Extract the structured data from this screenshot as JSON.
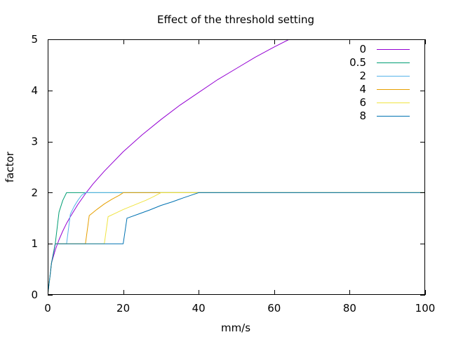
{
  "chart_data": {
    "type": "line",
    "title": "Effect of the threshold setting",
    "xlabel": "mm/s",
    "ylabel": "factor",
    "xlim": [
      0,
      100
    ],
    "ylim": [
      0,
      5
    ],
    "xticks": [
      0,
      20,
      40,
      60,
      80,
      100
    ],
    "yticks": [
      0,
      1,
      2,
      3,
      4,
      5
    ],
    "xtick_labels": [
      "0",
      "20",
      "40",
      "60",
      "80",
      "100"
    ],
    "ytick_labels": [
      "0",
      "1",
      "2",
      "3",
      "4",
      "5"
    ],
    "grid": false,
    "legend_position": "top-right",
    "series": [
      {
        "name": "0",
        "color": "#9400d3",
        "points": [
          [
            0,
            0
          ],
          [
            0.5,
            0.3
          ],
          [
            1,
            0.62
          ],
          [
            2,
            0.88
          ],
          [
            3,
            1.08
          ],
          [
            4,
            1.25
          ],
          [
            5,
            1.4
          ],
          [
            6,
            1.53
          ],
          [
            8,
            1.77
          ],
          [
            10,
            1.98
          ],
          [
            12,
            2.17
          ],
          [
            15,
            2.42
          ],
          [
            20,
            2.8
          ],
          [
            25,
            3.13
          ],
          [
            30,
            3.43
          ],
          [
            35,
            3.71
          ],
          [
            40,
            3.96
          ],
          [
            45,
            4.21
          ],
          [
            50,
            4.43
          ],
          [
            55,
            4.65
          ],
          [
            60,
            4.85
          ],
          [
            64,
            5.0
          ]
        ]
      },
      {
        "name": "0.5",
        "color": "#009e73",
        "points": [
          [
            0,
            0
          ],
          [
            0.5,
            0.3
          ],
          [
            1,
            0.62
          ],
          [
            1.5,
            0.8
          ],
          [
            2,
            1.0
          ],
          [
            3,
            1.62
          ],
          [
            4,
            1.85
          ],
          [
            5,
            2.0
          ],
          [
            100,
            2.0
          ]
        ]
      },
      {
        "name": "2",
        "color": "#56b4e9",
        "points": [
          [
            0,
            0
          ],
          [
            0.5,
            0.3
          ],
          [
            1,
            0.62
          ],
          [
            2,
            1.0
          ],
          [
            5,
            1.0
          ],
          [
            6,
            1.58
          ],
          [
            7,
            1.73
          ],
          [
            8,
            1.85
          ],
          [
            9,
            1.95
          ],
          [
            10,
            2.0
          ],
          [
            100,
            2.0
          ]
        ]
      },
      {
        "name": "4",
        "color": "#e69f00",
        "points": [
          [
            0,
            0
          ],
          [
            0.5,
            0.3
          ],
          [
            1,
            0.62
          ],
          [
            2,
            1.0
          ],
          [
            10,
            1.0
          ],
          [
            11,
            1.55
          ],
          [
            13,
            1.67
          ],
          [
            15,
            1.78
          ],
          [
            17,
            1.87
          ],
          [
            19,
            1.95
          ],
          [
            20,
            2.0
          ],
          [
            100,
            2.0
          ]
        ]
      },
      {
        "name": "6",
        "color": "#f0e442",
        "points": [
          [
            0,
            0
          ],
          [
            0.5,
            0.3
          ],
          [
            1,
            0.62
          ],
          [
            2,
            1.0
          ],
          [
            15,
            1.0
          ],
          [
            16,
            1.53
          ],
          [
            18,
            1.6
          ],
          [
            20,
            1.67
          ],
          [
            22,
            1.73
          ],
          [
            24,
            1.79
          ],
          [
            26,
            1.85
          ],
          [
            28,
            1.92
          ],
          [
            30,
            2.0
          ],
          [
            100,
            2.0
          ]
        ]
      },
      {
        "name": "8",
        "color": "#0072b2",
        "points": [
          [
            0,
            0
          ],
          [
            0.5,
            0.3
          ],
          [
            1,
            0.62
          ],
          [
            2,
            1.0
          ],
          [
            20,
            1.0
          ],
          [
            21,
            1.5
          ],
          [
            24,
            1.58
          ],
          [
            27,
            1.66
          ],
          [
            30,
            1.75
          ],
          [
            33,
            1.82
          ],
          [
            36,
            1.9
          ],
          [
            38,
            1.95
          ],
          [
            40,
            2.0
          ],
          [
            100,
            2.0
          ]
        ]
      }
    ]
  }
}
